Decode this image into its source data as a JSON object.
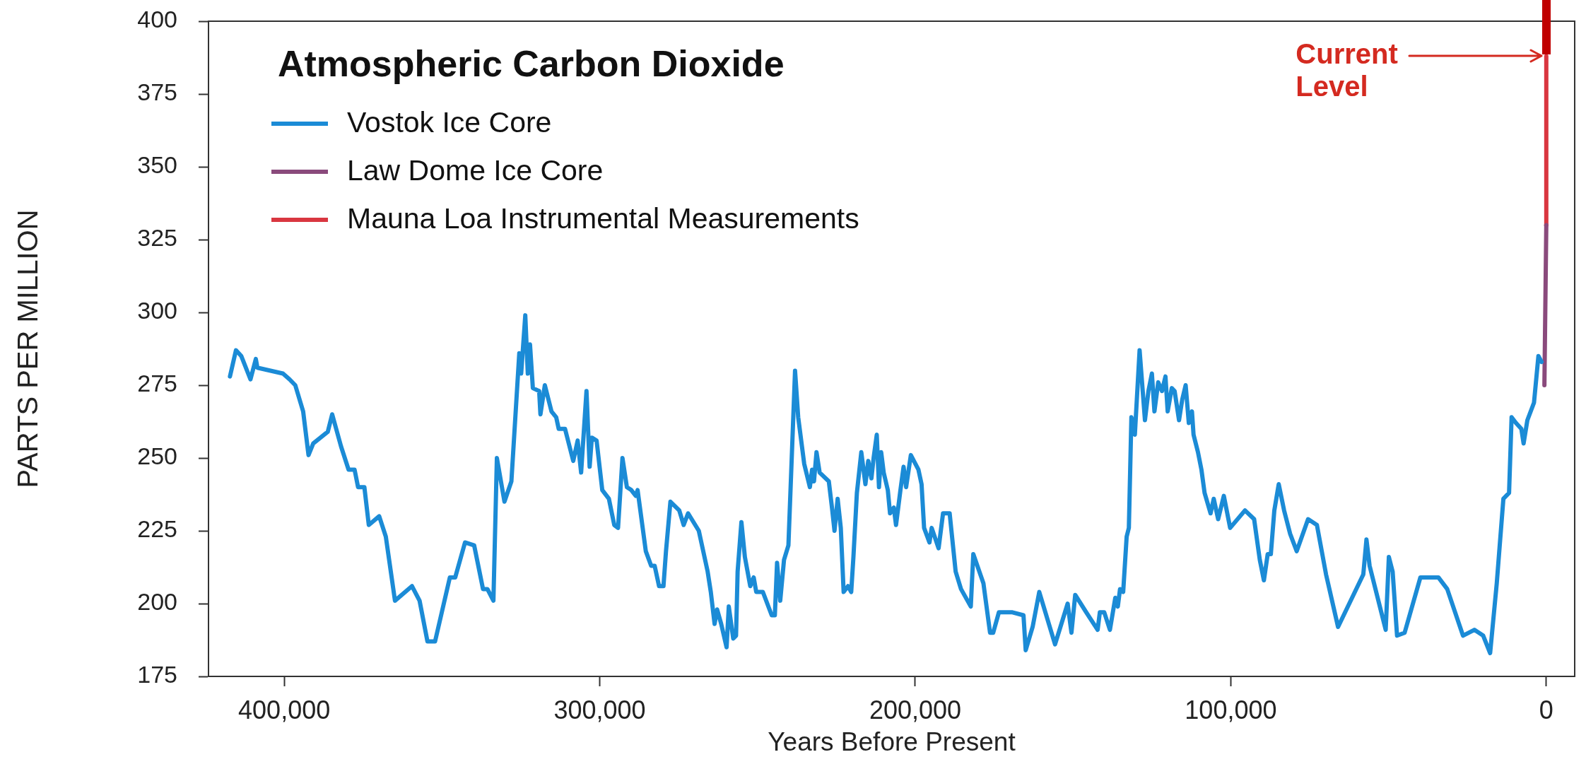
{
  "chart_data": {
    "type": "line",
    "title": "Atmospheric Carbon Dioxide",
    "xlabel": "Years Before Present",
    "ylabel": "PARTS PER MILLION",
    "xlim": [
      424000,
      -9000
    ],
    "xticks": [
      {
        "value": 400000,
        "label": "400,000"
      },
      {
        "value": 300000,
        "label": "300,000"
      },
      {
        "value": 200000,
        "label": "200,000"
      },
      {
        "value": 100000,
        "label": "100,000"
      },
      0
    ],
    "ylim": [
      175,
      400
    ],
    "yticks": [
      175,
      200,
      225,
      250,
      275,
      300,
      325,
      350,
      375,
      400
    ],
    "grid": false,
    "legend": "top left",
    "series": [
      {
        "name": "Vostok Ice Core",
        "color": "#1b8bd6",
        "x": [
          417200,
          415300,
          413600,
          410700,
          409000,
          408500,
          400400,
          398300,
          396500,
          394000,
          392300,
          390800,
          386200,
          384800,
          382000,
          379600,
          377700,
          376600,
          374600,
          373200,
          369900,
          367800,
          364900,
          359500,
          357100,
          354600,
          352200,
          347500,
          345800,
          342700,
          339800,
          337000,
          335600,
          333700,
          332600,
          330200,
          328000,
          325500,
          324900,
          323600,
          322800,
          322100,
          321200,
          319200,
          318800,
          317400,
          315300,
          313800,
          313000,
          311000,
          308400,
          307000,
          305900,
          304200,
          303200,
          302500,
          301000,
          299200,
          297100,
          295400,
          294200,
          292800,
          291400,
          290000,
          288600,
          288000,
          285400,
          283700,
          282600,
          281200,
          279800,
          279000,
          277600,
          274800,
          273400,
          272000,
          268600,
          265800,
          264800,
          263600,
          262800,
          261500,
          259800,
          259100,
          257700,
          256800,
          256300,
          255100,
          254000,
          252300,
          251200,
          250400,
          248300,
          245500,
          244500,
          243800,
          242800,
          241600,
          240200,
          238100,
          237100,
          235200,
          233400,
          232700,
          232100,
          231300,
          230300,
          227400,
          226400,
          225600,
          224600,
          223600,
          222700,
          221300,
          220300,
          219600,
          218500,
          217100,
          215800,
          214900,
          213900,
          213200,
          212200,
          211500,
          210800,
          210000,
          208700,
          208000,
          206800,
          206100,
          204700,
          203700,
          202900,
          201400,
          199000,
          198000,
          197200,
          195500,
          194800,
          192600,
          191200,
          189100,
          187200,
          185500,
          182400,
          181600,
          178400,
          176300,
          175300,
          173500,
          169200,
          165700,
          165000,
          162800,
          160700,
          155700,
          151700,
          150500,
          149300,
          145800,
          142200,
          141500,
          140100,
          138300,
          136600,
          135800,
          135100,
          134100,
          133000,
          132300,
          131500,
          130400,
          128900,
          127200,
          126100,
          125000,
          124200,
          123000,
          121800,
          120700,
          120000,
          118700,
          117800,
          116400,
          115400,
          114300,
          113300,
          112300,
          111800,
          110400,
          109300,
          108300,
          106400,
          105400,
          104000,
          102200,
          100200,
          95500,
          92600,
          90800,
          89500,
          88300,
          87300,
          86200,
          84800,
          83100,
          81200,
          79100,
          75500,
          72700,
          69800,
          66000,
          58000,
          57000,
          56000,
          50900,
          49900,
          48700,
          47300,
          44900,
          39900,
          34200,
          31400,
          26400,
          22800,
          20000,
          17800,
          15700,
          13600,
          11800,
          11000,
          9600,
          7900,
          7200,
          6000,
          3900,
          2500,
          1500
        ],
        "values": [
          278,
          287,
          285,
          277,
          284,
          281,
          279,
          277,
          275,
          266,
          251,
          255,
          259,
          265,
          254,
          246,
          246,
          240,
          240,
          227,
          230,
          223,
          201,
          206,
          201,
          187,
          187,
          209,
          209,
          221,
          220,
          205,
          205,
          201,
          250,
          235,
          242,
          286,
          279,
          299,
          279,
          289,
          274,
          273,
          265,
          275,
          266,
          264,
          260,
          260,
          249,
          256,
          245,
          273,
          247,
          257,
          256,
          239,
          236,
          227,
          226,
          250,
          240,
          239,
          237,
          239,
          218,
          213,
          213,
          206,
          206,
          218,
          235,
          232,
          227,
          231,
          225,
          211,
          204,
          193,
          198,
          193,
          185,
          199,
          188,
          189,
          211,
          228,
          216,
          206,
          209,
          204,
          204,
          196,
          196,
          214,
          201,
          215,
          220,
          280,
          264,
          248,
          240,
          246,
          242,
          252,
          245,
          242,
          233,
          225,
          236,
          226,
          204,
          206,
          204,
          216,
          238,
          252,
          241,
          249,
          243,
          250,
          258,
          240,
          252,
          245,
          239,
          231,
          233,
          227,
          239,
          247,
          240,
          251,
          246,
          241,
          226,
          221,
          226,
          219,
          231,
          231,
          211,
          205,
          199,
          217,
          207,
          190,
          190,
          197,
          197,
          196,
          184,
          192,
          204,
          186,
          200,
          190,
          203,
          197,
          191,
          197,
          197,
          191,
          202,
          199,
          205,
          204,
          223,
          226,
          264,
          258,
          287,
          263,
          273,
          279,
          266,
          276,
          273,
          278,
          266,
          274,
          273,
          263,
          270,
          275,
          262,
          266,
          258,
          252,
          246,
          238,
          231,
          236,
          229,
          237,
          226,
          232,
          229,
          215,
          208,
          217,
          217,
          232,
          241,
          232,
          224,
          218,
          229,
          227,
          210,
          192,
          210,
          222,
          213,
          191,
          216,
          211,
          189,
          190,
          209,
          209,
          205,
          189,
          191,
          189,
          183,
          207,
          236,
          238,
          264,
          262,
          260,
          255,
          263,
          269,
          285,
          283
        ]
      },
      {
        "name": "Law Dome Ice Core",
        "color": "#8a4a7c",
        "x": [
          600,
          0
        ],
        "values": [
          275,
          330
        ]
      },
      {
        "name": "Mauna Loa Instrumental Measurements",
        "color": "#d93640",
        "x": [
          50,
          0
        ],
        "values": [
          330,
          388
        ]
      }
    ],
    "annotations": [
      {
        "text": "Current\nLevel",
        "x": 0,
        "y": 388
      }
    ]
  }
}
